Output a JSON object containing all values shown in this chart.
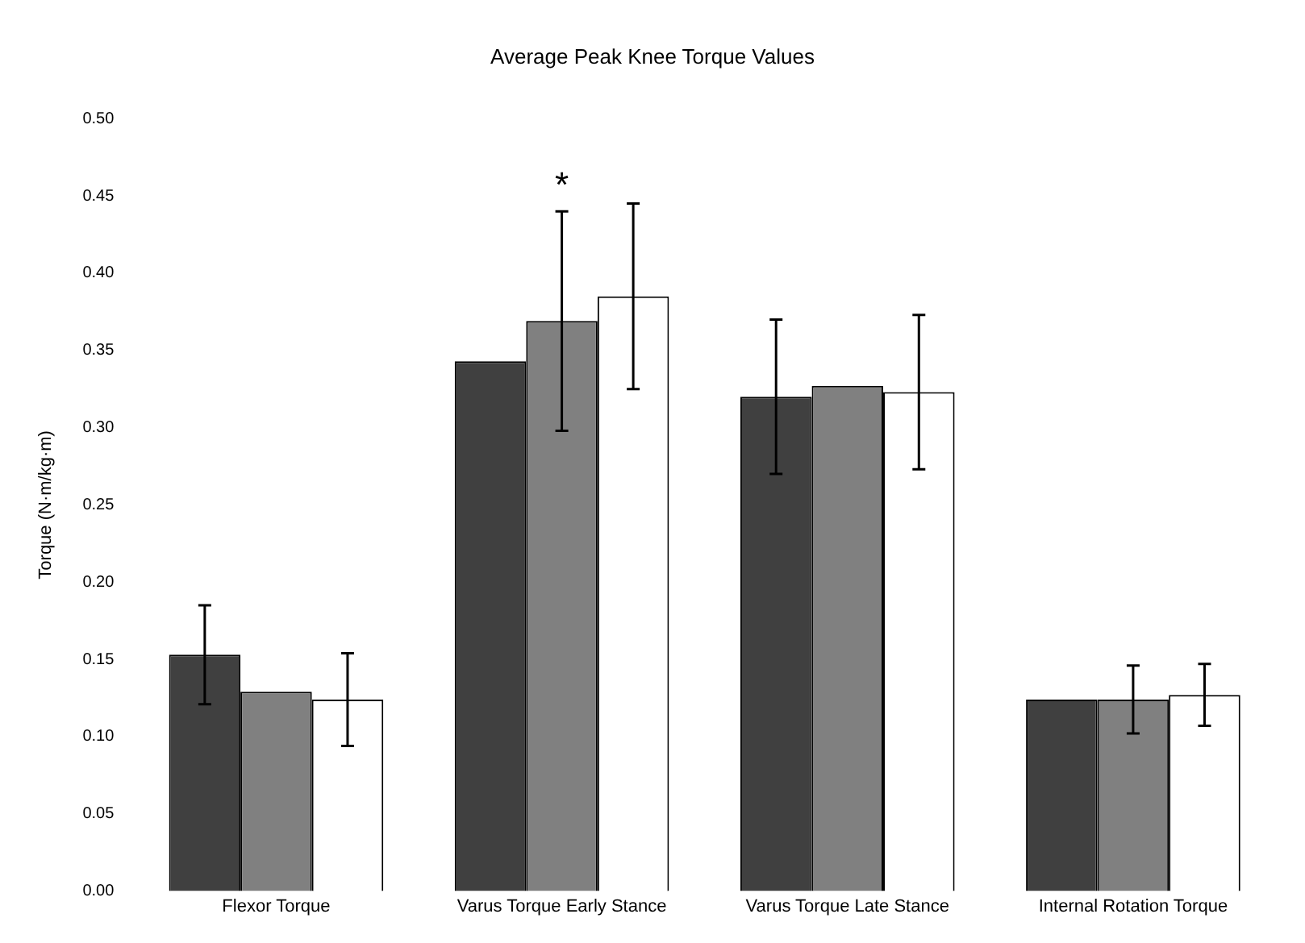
{
  "chart_data": {
    "type": "bar",
    "title": "Average Peak Knee Torque Values",
    "ylabel": "Torque (N·m/kg·m)",
    "categories": [
      "Flexor Torque",
      "Varus Torque Early Stance",
      "Varus Torque Late Stance",
      "Internal Rotation Torque"
    ],
    "series": [
      {
        "color": "#404040",
        "values": [
          0.153,
          0.343,
          0.32,
          0.124
        ],
        "errors": [
          0.032,
          null,
          0.05,
          null
        ]
      },
      {
        "color": "#808080",
        "values": [
          0.129,
          0.369,
          0.327,
          0.124
        ],
        "errors": [
          null,
          0.071,
          null,
          0.022
        ]
      },
      {
        "color": "#ffffff",
        "values": [
          0.124,
          0.385,
          0.323,
          0.127
        ],
        "errors": [
          0.03,
          0.06,
          0.05,
          0.02
        ]
      }
    ],
    "ylim": [
      0,
      0.5
    ],
    "yticks": [
      {
        "value": 0,
        "label": "0.00"
      },
      {
        "value": 0.05,
        "label": "0.05"
      },
      {
        "value": 0.1,
        "label": "0.10"
      },
      {
        "value": 0.15,
        "label": "0.15"
      },
      {
        "value": 0.2,
        "label": "0.20"
      },
      {
        "value": 0.25,
        "label": "0.25"
      },
      {
        "value": 0.3,
        "label": "0.30"
      },
      {
        "value": 0.35,
        "label": "0.35"
      },
      {
        "value": 0.4,
        "label": "0.40"
      },
      {
        "value": 0.45,
        "label": "0.45"
      },
      {
        "value": 0.5,
        "label": "0.50"
      }
    ],
    "annotations": [
      {
        "text": "*",
        "x": "Varus Torque Early Stance",
        "y": 0.44
      }
    ],
    "grid": false,
    "legend": false
  }
}
